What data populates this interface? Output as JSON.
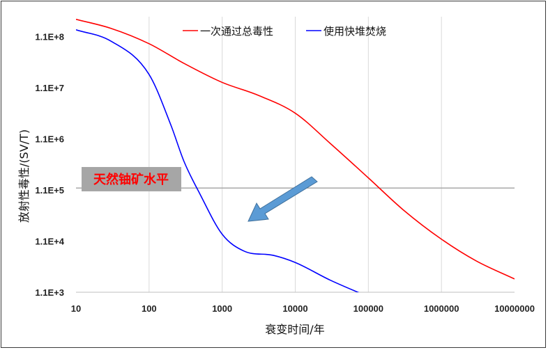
{
  "chart_data": {
    "type": "line",
    "x_scale": "log",
    "y_scale": "log",
    "xlim": [
      10,
      10000000
    ],
    "ylim": [
      1100,
      270000000
    ],
    "grid": "vertical",
    "legend_position": "top-center",
    "xlabel": "衰变时间/年",
    "ylabel": "放射性毒性/(SV/T)",
    "x_tick_labels": [
      "10",
      "100",
      "1000",
      "10000",
      "100000",
      "1000000",
      "10000000"
    ],
    "y_tick_labels": [
      {
        "value": 1100,
        "label": "1.1E+3"
      },
      {
        "value": 11000,
        "label": "1.1E+4"
      },
      {
        "value": 110000,
        "label": "1.1E+5"
      },
      {
        "value": 1100000,
        "label": "1.1E+6"
      },
      {
        "value": 11000000,
        "label": "1.1E+7"
      },
      {
        "value": 110000000,
        "label": "1.1E+8"
      }
    ],
    "series": [
      {
        "name": "一次通过总毒性",
        "color": "#ff0000",
        "points": [
          [
            10,
            240000000
          ],
          [
            30,
            160000000
          ],
          [
            100,
            80000000
          ],
          [
            300,
            33000000
          ],
          [
            1000,
            14000000
          ],
          [
            3000,
            8000000
          ],
          [
            10000,
            3500000
          ],
          [
            30000,
            900000
          ],
          [
            100000,
            190000
          ],
          [
            300000,
            45000
          ],
          [
            1000000,
            12000
          ],
          [
            3000000,
            4500
          ],
          [
            10000000,
            2000
          ]
        ]
      },
      {
        "name": "使用快堆焚烧",
        "color": "#0000ff",
        "points": [
          [
            10,
            150000000
          ],
          [
            30,
            90000000
          ],
          [
            100,
            20000000
          ],
          [
            200,
            2000000
          ],
          [
            300,
            400000
          ],
          [
            500,
            90000
          ],
          [
            1000,
            15000
          ],
          [
            2000,
            7000
          ],
          [
            5000,
            5800
          ],
          [
            10000,
            4200
          ],
          [
            30000,
            1900
          ],
          [
            100000,
            900
          ]
        ]
      }
    ],
    "reference_line": {
      "label": "天然铀矿水平",
      "value": 120000,
      "color": "#a8a8a8",
      "label_background": "#a6a6a6"
    },
    "annotation_arrow": {
      "from": [
        2000000,
        0
      ],
      "to": [
        0,
        0
      ],
      "color": "#5b9bd5",
      "direction": "down-left"
    }
  }
}
